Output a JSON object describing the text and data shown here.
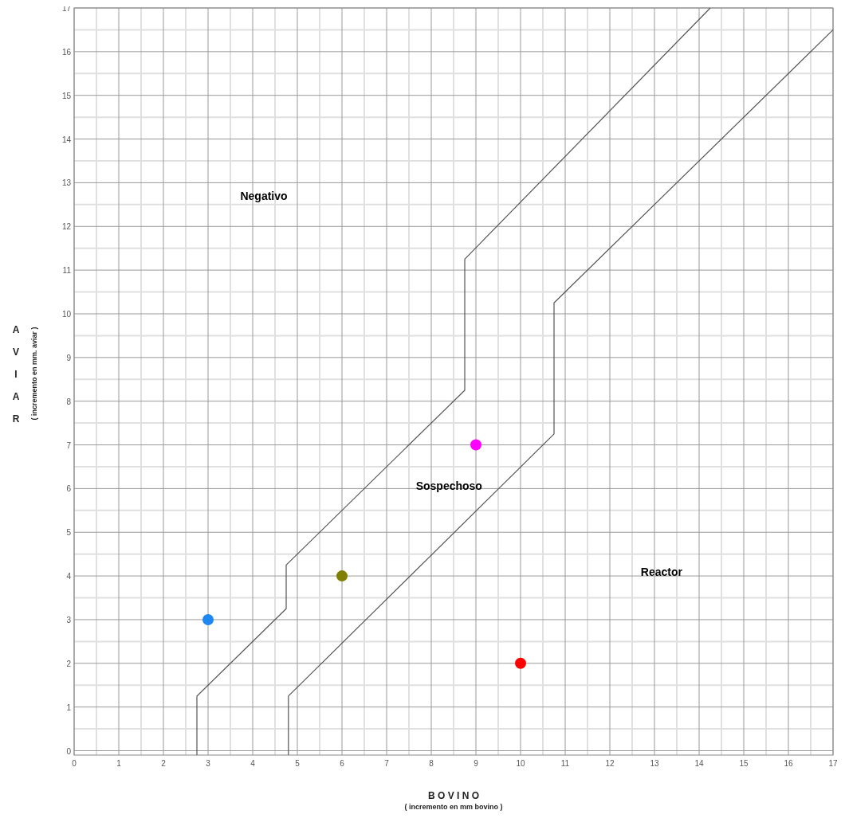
{
  "chart_data": {
    "type": "scatter",
    "xlabel": "B O V I N O\n( incremento en mm bovino )",
    "ylabel": "AVIAR\n( incremento en mm. aviar )",
    "xlim": [
      0,
      17
    ],
    "ylim": [
      -0.1,
      17
    ],
    "xticks": [
      0,
      1,
      2,
      3,
      4,
      5,
      6,
      7,
      8,
      9,
      10,
      11,
      12,
      13,
      14,
      15,
      16,
      17
    ],
    "yticks": [
      0,
      1,
      2,
      3,
      4,
      5,
      6,
      7,
      8,
      9,
      10,
      11,
      12,
      13,
      14,
      15,
      16,
      17
    ],
    "grid": true,
    "series": [
      {
        "type": "line",
        "color": "#555555",
        "marker": "none",
        "x": [
          2.75,
          2.75,
          4.75,
          4.75,
          8.75,
          8.75,
          14.25
        ],
        "values": [
          -0.1,
          1.25,
          3.25,
          4.25,
          8.25,
          11.25,
          17
        ]
      },
      {
        "type": "line",
        "color": "#555555",
        "marker": "none",
        "x": [
          4.8,
          4.8,
          10.75,
          10.75,
          17
        ],
        "values": [
          -0.1,
          1.25,
          7.25,
          10.25,
          16.5
        ]
      },
      {
        "color": "#1e88f0",
        "marker": "circle",
        "x": [
          3
        ],
        "values": [
          3
        ]
      },
      {
        "color": "#808000",
        "marker": "circle",
        "x": [
          6
        ],
        "values": [
          4
        ]
      },
      {
        "color": "#ff00ff",
        "marker": "circle",
        "x": [
          9
        ],
        "values": [
          7
        ]
      },
      {
        "color": "#ff0000",
        "marker": "circle",
        "x": [
          10
        ],
        "values": [
          2
        ]
      }
    ],
    "annotations": [
      "Negativo",
      "Sospechoso",
      "Reactor"
    ]
  }
}
